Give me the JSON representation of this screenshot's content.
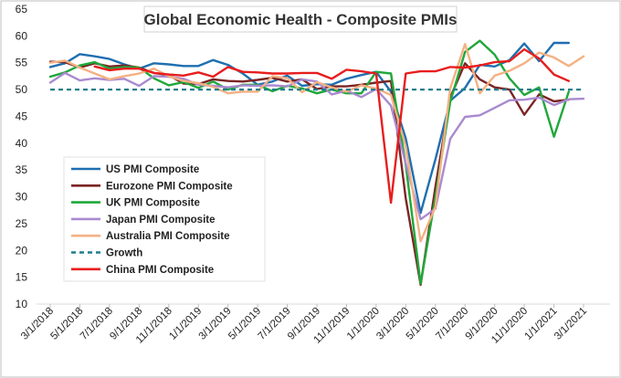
{
  "chart_data": {
    "type": "line",
    "title": "Global Economic Health - Composite PMIs",
    "xlabel": "",
    "ylabel": "",
    "ylim": [
      10,
      65
    ],
    "y_ticks": [
      10,
      15,
      20,
      25,
      30,
      35,
      40,
      45,
      50,
      55,
      60,
      65
    ],
    "x_tick_labels": [
      "3/1/2018",
      "5/1/2018",
      "7/1/2018",
      "9/1/2018",
      "11/1/2018",
      "1/1/2019",
      "3/1/2019",
      "5/1/2019",
      "7/1/2019",
      "9/1/2019",
      "11/1/2019",
      "1/1/2020",
      "3/1/2020",
      "5/1/2020",
      "7/1/2020",
      "9/1/2020",
      "11/1/2020",
      "1/1/2021",
      "3/1/2021"
    ],
    "x": [
      "2018-03",
      "2018-04",
      "2018-05",
      "2018-06",
      "2018-07",
      "2018-08",
      "2018-09",
      "2018-10",
      "2018-11",
      "2018-12",
      "2019-01",
      "2019-02",
      "2019-03",
      "2019-04",
      "2019-05",
      "2019-06",
      "2019-07",
      "2019-08",
      "2019-09",
      "2019-10",
      "2019-11",
      "2019-12",
      "2020-01",
      "2020-02",
      "2020-03",
      "2020-04",
      "2020-05",
      "2020-06",
      "2020-07",
      "2020-08",
      "2020-09",
      "2020-10",
      "2020-11",
      "2020-12",
      "2021-01",
      "2021-02",
      "2021-03"
    ],
    "grid": false,
    "legend_position": "left-middle",
    "series": [
      {
        "name": "US PMI Composite",
        "color": "#1f6fb0",
        "values": [
          54.2,
          54.9,
          56.6,
          56.2,
          55.7,
          54.7,
          53.9,
          54.9,
          54.7,
          54.4,
          54.4,
          55.5,
          54.6,
          53.0,
          50.9,
          51.5,
          52.6,
          50.7,
          51.0,
          50.9,
          52.0,
          52.7,
          53.3,
          49.6,
          40.9,
          27.0,
          37.0,
          47.9,
          50.3,
          54.6,
          54.3,
          55.5,
          58.6,
          55.3,
          58.7,
          58.7,
          null
        ]
      },
      {
        "name": "Eurozone PMI Composite",
        "color": "#7b2424",
        "values": [
          55.2,
          55.1,
          54.1,
          54.9,
          54.3,
          54.5,
          54.1,
          53.1,
          52.7,
          51.1,
          51.0,
          51.9,
          51.6,
          51.5,
          51.8,
          52.2,
          51.5,
          51.9,
          50.1,
          50.6,
          50.6,
          50.9,
          51.3,
          51.6,
          29.7,
          13.6,
          31.9,
          48.5,
          54.9,
          51.9,
          50.4,
          50.0,
          45.3,
          49.1,
          47.8,
          48.1,
          null
        ]
      },
      {
        "name": "UK PMI Composite",
        "color": "#1fa83a",
        "values": [
          52.4,
          53.2,
          54.5,
          55.1,
          53.9,
          54.2,
          54.1,
          52.1,
          50.8,
          51.4,
          50.3,
          51.5,
          50.0,
          50.9,
          50.9,
          49.7,
          50.7,
          50.2,
          49.3,
          50.0,
          49.3,
          49.3,
          53.3,
          53.0,
          36.0,
          13.8,
          30.0,
          47.7,
          57.0,
          59.1,
          56.5,
          52.1,
          49.0,
          50.4,
          41.2,
          49.6,
          null
        ]
      },
      {
        "name": "Japan PMI Composite",
        "color": "#a98ad0",
        "values": [
          51.3,
          53.1,
          51.7,
          52.1,
          51.8,
          52.0,
          50.7,
          52.5,
          52.4,
          52.0,
          50.9,
          50.7,
          50.4,
          50.8,
          50.7,
          50.8,
          50.6,
          51.9,
          51.5,
          49.1,
          49.8,
          48.6,
          50.1,
          47.0,
          36.2,
          25.8,
          27.8,
          40.8,
          44.9,
          45.2,
          46.6,
          48.0,
          48.1,
          48.5,
          47.1,
          48.2,
          48.3
        ]
      },
      {
        "name": "Australia PMI Composite",
        "color": "#f4b183",
        "values": [
          55.0,
          55.4,
          54.1,
          53.0,
          51.9,
          52.5,
          53.0,
          53.9,
          52.5,
          51.6,
          51.2,
          50.5,
          49.3,
          49.6,
          49.6,
          52.5,
          52.1,
          49.5,
          51.4,
          50.4,
          49.6,
          50.8,
          50.2,
          49.0,
          39.4,
          21.7,
          28.1,
          50.2,
          58.5,
          49.3,
          52.6,
          53.5,
          54.9,
          56.9,
          56.0,
          54.4,
          56.2
        ]
      },
      {
        "name": "Growth",
        "color": "#1f7f8c",
        "dashed": true,
        "values": [
          50,
          50,
          50,
          50,
          50,
          50,
          50,
          50,
          50,
          50,
          50,
          50,
          50,
          50,
          50,
          50,
          50,
          50,
          50,
          50,
          50,
          50,
          50,
          50,
          50,
          50,
          50,
          50,
          50,
          50,
          50,
          50,
          50,
          50,
          50,
          50,
          50
        ]
      },
      {
        "name": "China PMI Composite",
        "color": "#e81d1d",
        "values": [
          null,
          null,
          null,
          54.3,
          53.6,
          53.9,
          53.9,
          53.1,
          52.8,
          52.6,
          53.2,
          52.4,
          54.2,
          53.3,
          53.2,
          53.0,
          53.0,
          53.1,
          53.1,
          52.0,
          53.7,
          53.4,
          53.0,
          28.9,
          53.0,
          53.4,
          53.4,
          54.2,
          54.1,
          54.5,
          55.1,
          55.3,
          57.5,
          55.8,
          52.8,
          51.6,
          null
        ]
      }
    ]
  }
}
